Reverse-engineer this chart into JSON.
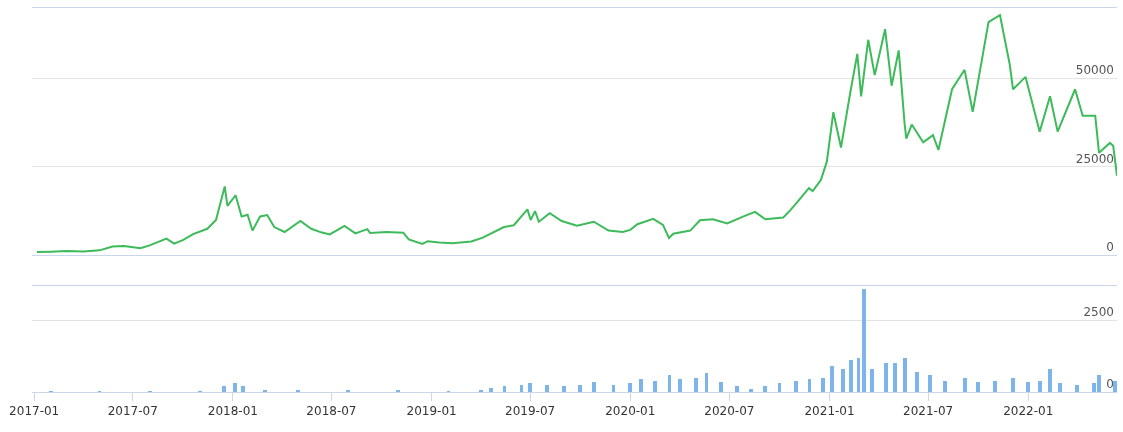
{
  "chart_data": [
    {
      "type": "line",
      "xlim": [
        "2016-12-28",
        "2022-06-13"
      ],
      "ylim": [
        0,
        70000
      ],
      "yticks": [
        0,
        25000,
        50000
      ],
      "grid": "y",
      "tick_labels": "y",
      "marker": "none",
      "line_style": "solid",
      "series": [
        {
          "color": "#3dbb5a",
          "x": [
            "2017-01-06",
            "2017-02-01",
            "2017-03-01",
            "2017-04-01",
            "2017-05-01",
            "2017-05-25",
            "2017-06-15",
            "2017-07-15",
            "2017-08-01",
            "2017-09-01",
            "2017-09-15",
            "2017-10-01",
            "2017-10-20",
            "2017-11-15",
            "2017-12-01",
            "2017-12-17",
            "2017-12-22",
            "2018-01-06",
            "2018-01-17",
            "2018-01-28",
            "2018-02-06",
            "2018-02-20",
            "2018-03-05",
            "2018-03-18",
            "2018-04-06",
            "2018-05-05",
            "2018-05-25",
            "2018-06-12",
            "2018-06-28",
            "2018-07-25",
            "2018-08-14",
            "2018-09-05",
            "2018-09-10",
            "2018-10-10",
            "2018-11-10",
            "2018-11-20",
            "2018-12-15",
            "2018-12-25",
            "2019-01-15",
            "2019-02-08",
            "2019-03-15",
            "2019-04-05",
            "2019-05-14",
            "2019-06-01",
            "2019-06-26",
            "2019-07-02",
            "2019-07-10",
            "2019-07-17",
            "2019-08-06",
            "2019-08-28",
            "2019-09-25",
            "2019-10-26",
            "2019-11-22",
            "2019-12-18",
            "2020-01-01",
            "2020-01-14",
            "2020-02-12",
            "2020-03-01",
            "2020-03-12",
            "2020-03-20",
            "2020-04-20",
            "2020-05-08",
            "2020-06-01",
            "2020-06-27",
            "2020-07-27",
            "2020-08-17",
            "2020-09-05",
            "2020-10-08",
            "2020-10-21",
            "2020-11-05",
            "2020-11-24",
            "2020-12-01",
            "2020-12-16",
            "2020-12-27",
            "2021-01-08",
            "2021-01-22",
            "2021-02-08",
            "2021-02-21",
            "2021-02-28",
            "2021-03-13",
            "2021-03-25",
            "2021-04-13",
            "2021-04-25",
            "2021-05-08",
            "2021-05-19",
            "2021-05-22",
            "2021-06-01",
            "2021-06-22",
            "2021-07-10",
            "2021-07-20",
            "2021-08-14",
            "2021-09-06",
            "2021-09-21",
            "2021-10-20",
            "2021-11-10",
            "2021-11-28",
            "2021-12-04",
            "2021-12-27",
            "2022-01-22",
            "2022-02-10",
            "2022-02-24",
            "2022-03-28",
            "2022-04-11",
            "2022-05-04",
            "2022-05-11",
            "2022-05-31",
            "2022-06-06",
            "2022-06-13"
          ],
          "values": [
            900,
            1000,
            1200,
            1100,
            1400,
            2500,
            2600,
            2000,
            2800,
            4700,
            3300,
            4300,
            6000,
            7500,
            10000,
            19500,
            14000,
            17000,
            11000,
            11500,
            7000,
            11000,
            11400,
            8000,
            6600,
            9700,
            7500,
            6500,
            5900,
            8300,
            6200,
            7400,
            6300,
            6600,
            6400,
            4500,
            3200,
            4000,
            3600,
            3400,
            3900,
            5000,
            8000,
            8500,
            13000,
            10000,
            12500,
            9500,
            11900,
            9700,
            8400,
            9500,
            7000,
            6600,
            7200,
            8800,
            10300,
            8600,
            4900,
            6100,
            7000,
            9900,
            10200,
            9000,
            11000,
            12300,
            10200,
            10700,
            12800,
            15500,
            19000,
            18200,
            21300,
            26500,
            40500,
            30500,
            46000,
            57000,
            45000,
            61000,
            51000,
            64000,
            48000,
            58000,
            37000,
            33000,
            37000,
            32000,
            34000,
            29800,
            47000,
            52500,
            40600,
            66000,
            68000,
            54000,
            47000,
            50500,
            35000,
            45000,
            35000,
            47000,
            39500,
            39500,
            29000,
            31800,
            31000,
            22500
          ]
        }
      ]
    },
    {
      "type": "bar",
      "xlim": [
        "2016-12-28",
        "2022-06-13"
      ],
      "ylim": [
        0,
        3700
      ],
      "yticks": [
        0,
        2500
      ],
      "grid": "y",
      "xticks": [
        {
          "value": "2017-01",
          "label": "2017-01"
        },
        {
          "value": "2017-07",
          "label": "2017-07"
        },
        {
          "value": "2018-01",
          "label": "2018-01"
        },
        {
          "value": "2018-07",
          "label": "2018-07"
        },
        {
          "value": "2019-01",
          "label": "2019-01"
        },
        {
          "value": "2019-07",
          "label": "2019-07"
        },
        {
          "value": "2020-01",
          "label": "2020-01"
        },
        {
          "value": "2020-07",
          "label": "2020-07"
        },
        {
          "value": "2021-01",
          "label": "2021-01"
        },
        {
          "value": "2021-07",
          "label": "2021-07"
        },
        {
          "value": "2022-01",
          "label": "2022-01"
        }
      ],
      "series": [
        {
          "color": "#7db4ea",
          "x": [
            "2017-02-01",
            "2017-05-01",
            "2017-08-01",
            "2017-11-01",
            "2017-12-15",
            "2018-01-05",
            "2018-01-20",
            "2018-03-01",
            "2018-05-01",
            "2018-08-01",
            "2018-11-01",
            "2019-02-01",
            "2019-04-01",
            "2019-04-20",
            "2019-05-15",
            "2019-06-15",
            "2019-07-01",
            "2019-08-01",
            "2019-09-01",
            "2019-10-01",
            "2019-10-26",
            "2019-12-01",
            "2020-01-01",
            "2020-01-20",
            "2020-02-15",
            "2020-03-13",
            "2020-04-01",
            "2020-05-01",
            "2020-05-20",
            "2020-06-15",
            "2020-07-15",
            "2020-08-10",
            "2020-09-05",
            "2020-10-01",
            "2020-11-01",
            "2020-11-25",
            "2020-12-20",
            "2021-01-05",
            "2021-01-25",
            "2021-02-10",
            "2021-02-23",
            "2021-03-05",
            "2021-03-20",
            "2021-04-15",
            "2021-05-01",
            "2021-05-19",
            "2021-06-10",
            "2021-07-05",
            "2021-08-01",
            "2021-09-07",
            "2021-10-01",
            "2021-11-01",
            "2021-12-04",
            "2022-01-01",
            "2022-01-22",
            "2022-02-10",
            "2022-03-01",
            "2022-04-01",
            "2022-05-01",
            "2022-05-11",
            "2022-06-10"
          ],
          "values": [
            20,
            20,
            20,
            30,
            200,
            300,
            200,
            80,
            50,
            40,
            40,
            30,
            60,
            150,
            200,
            250,
            300,
            250,
            200,
            250,
            350,
            250,
            300,
            450,
            400,
            600,
            450,
            500,
            650,
            350,
            200,
            100,
            200,
            300,
            400,
            450,
            500,
            900,
            800,
            1100,
            1200,
            3600,
            800,
            1000,
            1000,
            1200,
            700,
            600,
            400,
            500,
            350,
            400,
            500,
            350,
            400,
            800,
            300,
            250,
            300,
            600,
            400
          ]
        }
      ]
    }
  ]
}
